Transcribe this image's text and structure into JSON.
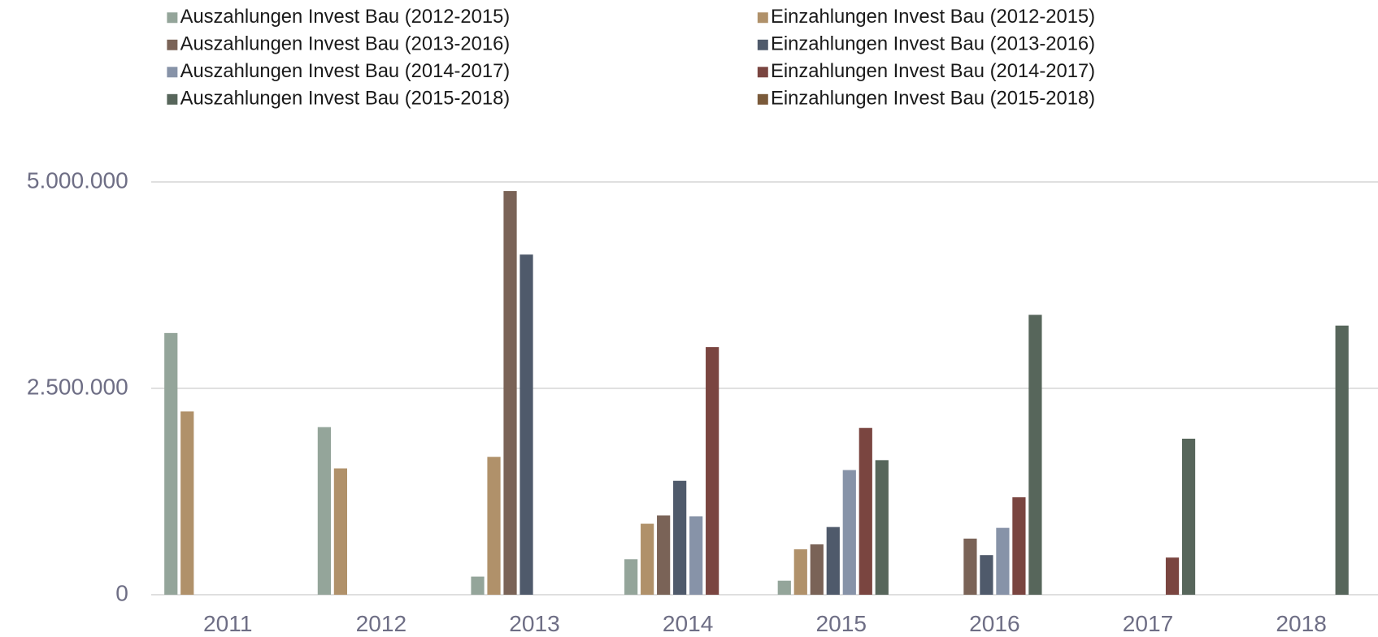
{
  "chart_data": {
    "type": "bar",
    "categories": [
      "2011",
      "2012",
      "2013",
      "2014",
      "2015",
      "2016",
      "2017",
      "2018"
    ],
    "series": [
      {
        "name": "Auszahlungen Invest Bau (2012-2015)",
        "color": "#94a59a",
        "values": [
          3170000,
          2030000,
          220000,
          430000,
          170000,
          null,
          null,
          null
        ]
      },
      {
        "name": "Einzahlungen Invest Bau (2012-2015)",
        "color": "#b0916a",
        "values": [
          2220000,
          1530000,
          1670000,
          860000,
          550000,
          null,
          null,
          null
        ]
      },
      {
        "name": "Auszahlungen Invest Bau (2013-2016)",
        "color": "#7a6357",
        "values": [
          null,
          null,
          4890000,
          960000,
          610000,
          680000,
          null,
          null
        ]
      },
      {
        "name": "Einzahlungen Invest Bau (2013-2016)",
        "color": "#4f5a6b",
        "values": [
          null,
          null,
          4120000,
          1380000,
          820000,
          480000,
          null,
          null
        ]
      },
      {
        "name": "Auszahlungen Invest Bau (2014-2017)",
        "color": "#8793a8",
        "values": [
          null,
          null,
          null,
          950000,
          1510000,
          810000,
          null,
          null
        ]
      },
      {
        "name": "Einzahlungen Invest Bau (2014-2017)",
        "color": "#7a4540",
        "values": [
          null,
          null,
          null,
          3000000,
          2020000,
          1180000,
          450000,
          null
        ]
      },
      {
        "name": "Auszahlungen Invest Bau (2015-2018)",
        "color": "#57665b",
        "values": [
          null,
          null,
          null,
          null,
          1630000,
          3390000,
          1890000,
          3260000
        ]
      },
      {
        "name": "Einzahlungen Invest Bau (2015-2018)",
        "color": "#7a5a3a",
        "values": [
          null,
          null,
          null,
          null,
          null,
          null,
          null,
          null
        ]
      }
    ],
    "ylim": [
      0,
      5000000
    ],
    "yticks": [
      0,
      {
        "value": 2500000,
        "label": "2.500.000"
      },
      {
        "value": 5000000,
        "label": "5.000.000"
      }
    ],
    "grid": true
  }
}
